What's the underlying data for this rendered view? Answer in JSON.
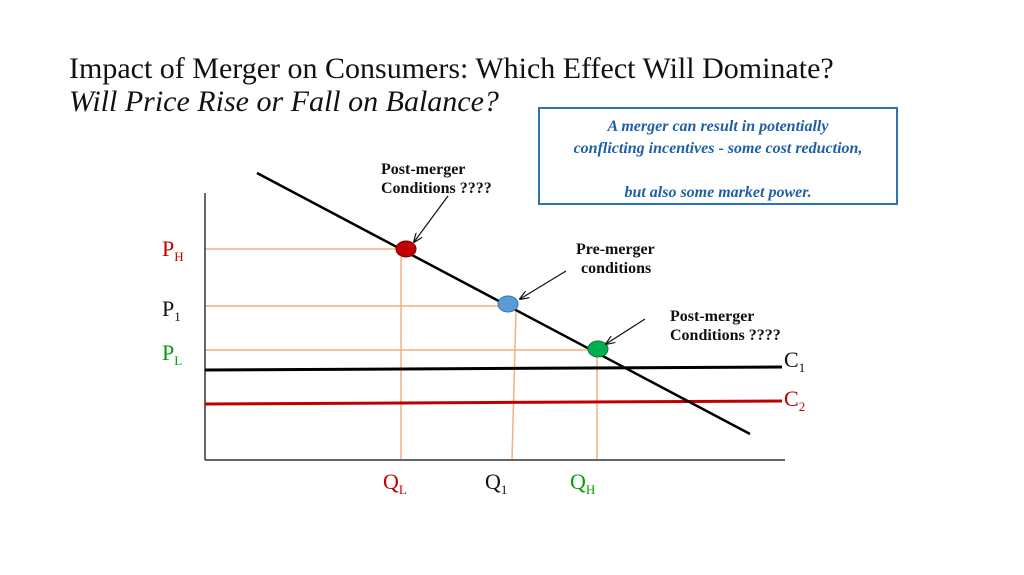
{
  "title": "Impact of Merger on Consumers: Which Effect Will Dominate?",
  "subtitle": "Will Price Rise or Fall on Balance?",
  "callout": {
    "line1": "A merger can result in potentially",
    "line2": "conflicting incentives - some cost reduction,",
    "line3": "but also some market power."
  },
  "annotations": {
    "post_merger_high": [
      "Post-merger",
      "Conditions ????"
    ],
    "pre_merger": [
      "Pre-merger",
      "conditions"
    ],
    "post_merger_low": [
      "Post-merger",
      "Conditions ????"
    ]
  },
  "price_labels": {
    "high": {
      "main": "P",
      "sub": "H",
      "color": "#c00000"
    },
    "mid": {
      "main": "P",
      "sub": "1",
      "color": "#111111"
    },
    "low": {
      "main": "P",
      "sub": "L",
      "color": "#00a000"
    }
  },
  "quantity_labels": {
    "low": {
      "main": "Q",
      "sub": "L",
      "color": "#c00000"
    },
    "mid": {
      "main": "Q",
      "sub": "1",
      "color": "#111111"
    },
    "high": {
      "main": "Q",
      "sub": "H",
      "color": "#00a000"
    }
  },
  "cost_labels": {
    "c1": {
      "main": "C",
      "sub": "1",
      "color": "#111111"
    },
    "c2": {
      "main": "C",
      "sub": "2",
      "color": "#c00000"
    }
  },
  "points": {
    "post_high": {
      "color": "#c00000"
    },
    "pre": {
      "color": "#5b9bd5"
    },
    "post_low": {
      "color": "#00b050"
    }
  },
  "colors": {
    "guide": "#f4b183",
    "axis": "#333333",
    "demand": "#000000",
    "c1_line": "#000000",
    "c2_line": "#c00000",
    "callout_border": "#2e75b6",
    "callout_text": "#1f5fa6"
  }
}
